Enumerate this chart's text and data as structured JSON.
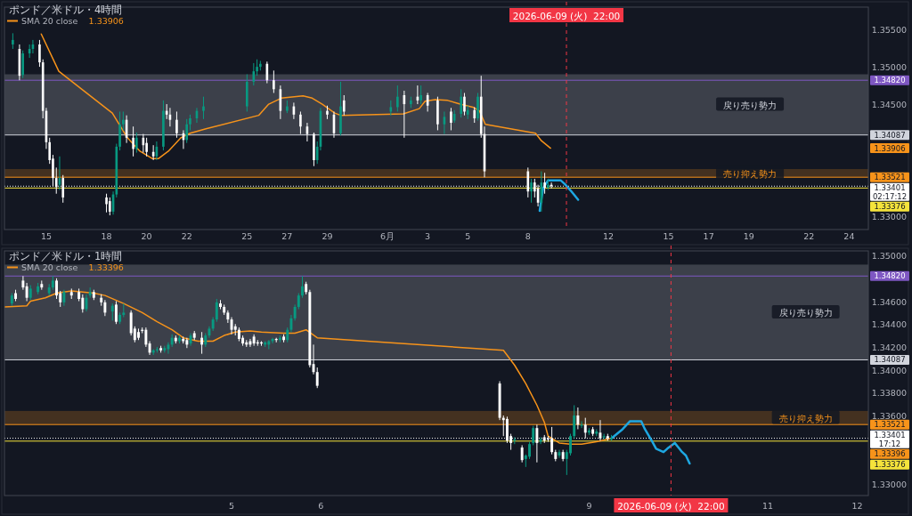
{
  "chart_data": [
    {
      "type": "candlestick",
      "title": "ポンド／米ドル・4時間",
      "legend": "top left",
      "grid": false,
      "x": [
        "2026-05-13T08:00",
        "2026-05-13T16:00",
        "2026-05-13T20:00",
        "2026-05-14T04:00",
        "2026-05-14T08:00",
        "2026-05-14T16:00",
        "2026-05-14T20:00",
        "2026-05-15T00:00",
        "2026-05-15T04:00",
        "2026-05-15T08:00",
        "2026-05-15T12:00",
        "2026-05-15T16:00",
        "2026-05-15T20:00",
        "2026-05-18T00:00",
        "2026-05-18T04:00",
        "2026-05-18T08:00",
        "2026-05-18T12:00",
        "2026-05-18T16:00",
        "2026-05-18T20:00",
        "2026-05-19T00:00",
        "2026-05-19T08:00",
        "2026-05-19T12:00",
        "2026-05-19T20:00",
        "2026-05-20T00:00",
        "2026-05-20T08:00",
        "2026-05-20T12:00",
        "2026-05-20T20:00",
        "2026-05-21T00:00",
        "2026-05-21T04:00",
        "2026-05-21T12:00",
        "2026-05-21T20:00",
        "2026-05-22T00:00",
        "2026-05-22T04:00",
        "2026-05-22T12:00",
        "2026-05-22T20:00",
        "2026-05-25T00:00",
        "2026-05-25T08:00",
        "2026-05-25T12:00",
        "2026-05-25T16:00",
        "2026-05-26T00:00",
        "2026-05-26T08:00",
        "2026-05-26T16:00",
        "2026-05-27T00:00",
        "2026-05-27T08:00",
        "2026-05-27T16:00",
        "2026-05-28T00:00",
        "2026-05-28T08:00",
        "2026-05-28T12:00",
        "2026-05-28T16:00",
        "2026-05-29T00:00",
        "2026-05-29T08:00",
        "2026-05-29T16:00",
        "2026-05-29T20:00",
        "2026-06-01T04:00",
        "2026-06-01T12:00",
        "2026-06-01T20:00",
        "2026-06-02T04:00",
        "2026-06-02T12:00",
        "2026-06-02T16:00",
        "2026-06-03T00:00",
        "2026-06-03T12:00",
        "2026-06-03T20:00",
        "2026-06-04T04:00",
        "2026-06-04T08:00",
        "2026-06-04T16:00",
        "2026-06-04T20:00",
        "2026-06-05T00:00",
        "2026-06-05T08:00",
        "2026-06-05T12:00",
        "2026-06-05T16:00",
        "2026-06-05T20:00",
        "2026-06-08T00:00",
        "2026-06-08T04:00",
        "2026-06-08T08:00",
        "2026-06-08T12:00",
        "2026-06-08T16:00",
        "2026-06-08T20:00",
        "2026-06-09T00:00",
        "2026-06-09T04:00"
      ],
      "ohlc": [
        [
          1.353,
          1.3545,
          1.3524,
          1.3536
        ],
        [
          1.3524,
          1.353,
          1.3482,
          1.3488
        ],
        [
          1.3489,
          1.3522,
          1.3485,
          1.3518
        ],
        [
          1.3518,
          1.353,
          1.3512,
          1.3524
        ],
        [
          1.3524,
          1.3536,
          1.3518,
          1.353
        ],
        [
          1.353,
          1.3536,
          1.35,
          1.3506
        ],
        [
          1.3506,
          1.351,
          1.3431,
          1.3441
        ],
        [
          1.3441,
          1.3445,
          1.339,
          1.3399
        ],
        [
          1.3399,
          1.3405,
          1.337,
          1.3375
        ],
        [
          1.3377,
          1.3382,
          1.334,
          1.3351
        ],
        [
          1.3351,
          1.3365,
          1.333,
          1.3339
        ],
        [
          1.3342,
          1.338,
          1.3335,
          1.3351
        ],
        [
          1.3351,
          1.3355,
          1.3318,
          1.3325
        ],
        [
          1.3325,
          1.333,
          1.3305,
          1.3316
        ],
        [
          1.332,
          1.3325,
          1.3301,
          1.3306
        ],
        [
          1.3306,
          1.3333,
          1.3302,
          1.3329
        ],
        [
          1.3329,
          1.3397,
          1.3325,
          1.3393
        ],
        [
          1.3393,
          1.344,
          1.3388,
          1.3423
        ],
        [
          1.3423,
          1.344,
          1.3415,
          1.3429
        ],
        [
          1.3429,
          1.3435,
          1.3398,
          1.3405
        ],
        [
          1.3405,
          1.342,
          1.338,
          1.339
        ],
        [
          1.339,
          1.3412,
          1.3385,
          1.3405
        ],
        [
          1.3405,
          1.341,
          1.3385,
          1.3395
        ],
        [
          1.3398,
          1.3405,
          1.338,
          1.3386
        ],
        [
          1.3386,
          1.3395,
          1.3375,
          1.338
        ],
        [
          1.338,
          1.34,
          1.3375,
          1.3393
        ],
        [
          1.3393,
          1.3455,
          1.3388,
          1.3441
        ],
        [
          1.3441,
          1.345,
          1.343,
          1.3436
        ],
        [
          1.3436,
          1.3445,
          1.342,
          1.3429
        ],
        [
          1.3429,
          1.344,
          1.3405,
          1.3411
        ],
        [
          1.3411,
          1.3415,
          1.339,
          1.3402
        ],
        [
          1.3402,
          1.343,
          1.3398,
          1.3423
        ],
        [
          1.3423,
          1.3436,
          1.3415,
          1.3431
        ],
        [
          1.3431,
          1.3445,
          1.3425,
          1.3441
        ],
        [
          1.3441,
          1.346,
          1.343,
          1.3447
        ],
        [
          1.3447,
          1.349,
          1.344,
          1.348
        ],
        [
          1.348,
          1.3505,
          1.3475,
          1.3494
        ],
        [
          1.3494,
          1.351,
          1.3488,
          1.35
        ],
        [
          1.35,
          1.3508,
          1.3495,
          1.3504
        ],
        [
          1.3504,
          1.3507,
          1.3478,
          1.3482
        ],
        [
          1.3482,
          1.3495,
          1.3465,
          1.347
        ],
        [
          1.347,
          1.3475,
          1.343,
          1.3441
        ],
        [
          1.3441,
          1.3455,
          1.3438,
          1.3447
        ],
        [
          1.3447,
          1.3452,
          1.343,
          1.3436
        ],
        [
          1.3436,
          1.344,
          1.341,
          1.342
        ],
        [
          1.342,
          1.3425,
          1.34,
          1.341
        ],
        [
          1.341,
          1.3412,
          1.3367,
          1.3375
        ],
        [
          1.3375,
          1.34,
          1.337,
          1.3393
        ],
        [
          1.3393,
          1.3445,
          1.3388,
          1.3441
        ],
        [
          1.3441,
          1.3448,
          1.343,
          1.3436
        ],
        [
          1.3436,
          1.344,
          1.3405,
          1.3411
        ],
        [
          1.3411,
          1.348,
          1.3408,
          1.3447
        ],
        [
          1.3455,
          1.3462,
          1.3435,
          1.344
        ],
        [
          1.344,
          1.3455,
          1.3435,
          1.3446
        ],
        [
          1.3446,
          1.3475,
          1.344,
          1.346
        ],
        [
          1.3462,
          1.3468,
          1.3405,
          1.345
        ],
        [
          1.345,
          1.346,
          1.3445,
          1.3455
        ],
        [
          1.346,
          1.3475,
          1.345,
          1.3455
        ],
        [
          1.3455,
          1.3475,
          1.345,
          1.3462
        ],
        [
          1.3462,
          1.3465,
          1.344,
          1.3448
        ],
        [
          1.3455,
          1.346,
          1.3415,
          1.3423
        ],
        [
          1.3423,
          1.344,
          1.341,
          1.3433
        ],
        [
          1.344,
          1.3445,
          1.3415,
          1.3425
        ],
        [
          1.3428,
          1.3442,
          1.3425,
          1.3437
        ],
        [
          1.3437,
          1.347,
          1.3432,
          1.346
        ],
        [
          1.346,
          1.3465,
          1.3435,
          1.344
        ],
        [
          1.3436,
          1.3448,
          1.343,
          1.3442
        ],
        [
          1.3442,
          1.3446,
          1.3425,
          1.3431
        ],
        [
          1.3431,
          1.3465,
          1.3428,
          1.346
        ],
        [
          1.346,
          1.3488,
          1.3405,
          1.341
        ],
        [
          1.341,
          1.342,
          1.3352,
          1.336
        ],
        [
          1.336,
          1.3365,
          1.3325,
          1.3333
        ],
        [
          1.3333,
          1.335,
          1.3318,
          1.3345
        ],
        [
          1.3345,
          1.335,
          1.3325,
          1.3333
        ],
        [
          1.3337,
          1.3342,
          1.3313,
          1.3318
        ],
        [
          1.3318,
          1.336,
          1.3306,
          1.3345
        ],
        [
          1.3345,
          1.3358,
          1.333,
          1.3338
        ],
        [
          1.3338,
          1.335,
          1.3335,
          1.3342
        ],
        [
          1.3342,
          1.3345,
          1.3337,
          1.334
        ]
      ],
      "colors": [
        "#089981",
        "#ffffff",
        "#089981",
        "#089981",
        "#089981",
        "#ffffff",
        "#ffffff",
        "#ffffff",
        "#ffffff",
        "#ffffff",
        "#ffffff",
        "#089981",
        "#ffffff",
        "#ffffff",
        "#ffffff",
        "#089981",
        "#089981",
        "#089981",
        "#089981",
        "#ffffff",
        "#ffffff",
        "#089981",
        "#ffffff",
        "#ffffff",
        "#ffffff",
        "#089981",
        "#089981",
        "#ffffff",
        "#ffffff",
        "#ffffff",
        "#ffffff",
        "#089981",
        "#089981",
        "#089981",
        "#089981",
        "#089981",
        "#089981",
        "#089981",
        "#089981",
        "#ffffff",
        "#ffffff",
        "#ffffff",
        "#089981",
        "#ffffff",
        "#ffffff",
        "#ffffff",
        "#ffffff",
        "#089981",
        "#089981",
        "#ffffff",
        "#ffffff",
        "#089981",
        "#ffffff",
        "#089981",
        "#089981",
        "#ffffff",
        "#089981",
        "#ffffff",
        "#089981",
        "#ffffff",
        "#ffffff",
        "#089981",
        "#ffffff",
        "#089981",
        "#089981",
        "#ffffff",
        "#089981",
        "#ffffff",
        "#089981",
        "#ffffff",
        "#ffffff",
        "#ffffff",
        "#089981",
        "#ffffff",
        "#ffffff",
        "#089981",
        "#ffffff",
        "#089981",
        "#ffffff"
      ],
      "series": [
        {
          "name": "SMA 20 close",
          "type": "line",
          "color": "#f7931a",
          "x": [
            "2026-05-14T18:00",
            "2026-05-15T15:00",
            "2026-05-18T07:00",
            "2026-05-19T01:00",
            "2026-05-19T16:00",
            "2026-05-20T07:00",
            "2026-05-20T14:00",
            "2026-05-21T02:00",
            "2026-05-21T17:00",
            "2026-05-22T04:00",
            "2026-05-22T23:00",
            "2026-05-25T14:00",
            "2026-05-26T02:00",
            "2026-05-26T17:00",
            "2026-05-27T19:00",
            "2026-05-28T06:00",
            "2026-05-28T18:00",
            "2026-05-29T09:00",
            "2026-05-29T16:00",
            "2026-06-01T19:00",
            "2026-06-02T14:00",
            "2026-06-02T21:00",
            "2026-06-03T09:00",
            "2026-06-04T00:00",
            "2026-06-04T15:00",
            "2026-06-05T06:00",
            "2026-06-05T14:00",
            "2026-06-05T21:00",
            "2026-06-08T09:00",
            "2026-06-08T16:00",
            "2026-06-09T03:00"
          ],
          "values": [
            1.3544,
            1.3494,
            1.3438,
            1.3405,
            1.3387,
            1.3377,
            1.3377,
            1.3387,
            1.3405,
            1.3411,
            1.3417,
            1.3435,
            1.345,
            1.3458,
            1.3461,
            1.3458,
            1.345,
            1.3438,
            1.3435,
            1.3437,
            1.3444,
            1.3454,
            1.3456,
            1.3455,
            1.345,
            1.3446,
            1.3441,
            1.3423,
            1.3411,
            1.3401,
            1.3391
          ]
        },
        {
          "type": "line",
          "color": "#1ea7e1",
          "x": [
            "2026-06-08T14:00",
            "2026-06-08T18:00",
            "2026-06-09T00:00",
            "2026-06-09T15:00",
            "2026-06-09T20:00",
            "2026-06-10T04:00",
            "2026-06-10T12:00"
          ],
          "values": [
            1.3307,
            1.3337,
            1.3348,
            1.3348,
            1.3343,
            1.3333,
            1.3322
          ]
        }
      ],
      "xlim": [
        "2026-05-12T22:00",
        "2026-06-24T23:00"
      ],
      "xticks": [
        {
          "value": "2026-05-15",
          "label": "15"
        },
        {
          "value": "2026-05-18",
          "label": "18"
        },
        {
          "value": "2026-05-20",
          "label": "20"
        },
        {
          "value": "2026-05-22",
          "label": "22"
        },
        {
          "value": "2026-05-25",
          "label": "25"
        },
        {
          "value": "2026-05-27",
          "label": "27"
        },
        {
          "value": "2026-05-29",
          "label": "29"
        },
        {
          "value": "2026-06-01",
          "label": "6月"
        },
        {
          "value": "2026-06-03",
          "label": "3"
        },
        {
          "value": "2026-06-05",
          "label": "5"
        },
        {
          "value": "2026-06-08",
          "label": "8"
        },
        {
          "value": "2026-06-12",
          "label": "12"
        },
        {
          "value": "2026-06-15",
          "label": "15"
        },
        {
          "value": "2026-06-17",
          "label": "17"
        },
        {
          "value": "2026-06-19",
          "label": "19"
        },
        {
          "value": "2026-06-22",
          "label": "22"
        },
        {
          "value": "2026-06-24",
          "label": "24"
        }
      ],
      "ylim": [
        1.3282,
        1.358
      ],
      "yticks": [
        {
          "value": 1.33,
          "label": "1.33000"
        },
        {
          "value": 1.345,
          "label": "1.34500"
        },
        {
          "value": 1.35,
          "label": "1.35000"
        },
        {
          "value": 1.355,
          "label": "1.35500"
        }
      ],
      "bands": [
        {
          "axis": "y",
          "from": 1.34087,
          "to": 1.349,
          "label": "戻り売り勢力",
          "color": "#d1d4dc"
        },
        {
          "axis": "y",
          "from": 1.33521,
          "to": 1.3363,
          "label": "売り抑え勢力",
          "color": "#f7931a"
        }
      ],
      "ref_lines": [
        {
          "axis": "y",
          "value": 1.3482,
          "label": "1.34820",
          "color": "#7e57c2"
        },
        {
          "axis": "y",
          "value": 1.34087,
          "label": "1.34087",
          "color": "#d1d4dc"
        },
        {
          "axis": "y",
          "value": 1.33521,
          "label": "1.33521",
          "color": "#f7931a"
        },
        {
          "axis": "y",
          "value": 1.33401,
          "label": "1.33401\n02:17:12",
          "color": "#ffffff",
          "line_style": "dotted"
        },
        {
          "axis": "y",
          "value": 1.33376,
          "label": "1.33376",
          "color": "#f5e33b"
        },
        {
          "axis": "x",
          "value": "2026-06-09T22:00",
          "label": "2026-06-09 (火)  22:00",
          "color": "#f23645",
          "line_style": "dashed"
        }
      ],
      "annotations": [
        "1.33906"
      ]
    },
    {
      "type": "candlestick",
      "title": "ポンド／米ドル・1時間",
      "legend": "top left",
      "grid": false,
      "x": [
        "2026-06-02T13:00",
        "2026-06-02T14:00",
        "2026-06-02T16:00",
        "2026-06-02T17:00",
        "2026-06-02T18:00",
        "2026-06-02T20:00",
        "2026-06-02T21:00",
        "2026-06-02T23:00",
        "2026-06-03T00:00",
        "2026-06-03T01:00",
        "2026-06-03T02:00",
        "2026-06-03T03:00",
        "2026-06-03T05:00",
        "2026-06-03T07:00",
        "2026-06-03T08:00",
        "2026-06-03T09:00",
        "2026-06-03T10:00",
        "2026-06-03T11:00",
        "2026-06-03T13:00",
        "2026-06-03T14:00",
        "2026-06-03T16:00",
        "2026-06-03T17:00",
        "2026-06-03T18:00",
        "2026-06-03T19:00",
        "2026-06-03T21:00",
        "2026-06-03T22:00",
        "2026-06-03T23:00",
        "2026-06-04T00:00",
        "2026-06-04T01:00",
        "2026-06-04T02:00",
        "2026-06-04T03:00",
        "2026-06-04T04:00",
        "2026-06-04T05:00",
        "2026-06-04T06:00",
        "2026-06-04T07:00",
        "2026-06-04T08:00",
        "2026-06-04T09:00",
        "2026-06-04T10:00",
        "2026-06-04T11:00",
        "2026-06-04T12:00",
        "2026-06-04T13:00",
        "2026-06-04T14:00",
        "2026-06-04T16:00",
        "2026-06-04T17:00",
        "2026-06-04T18:00",
        "2026-06-04T19:00",
        "2026-06-04T20:00",
        "2026-06-04T21:00",
        "2026-06-04T22:00",
        "2026-06-04T23:00",
        "2026-06-05T00:00",
        "2026-06-05T01:00",
        "2026-06-05T02:00",
        "2026-06-05T03:00",
        "2026-06-05T04:00",
        "2026-06-05T05:00",
        "2026-06-05T06:00",
        "2026-06-05T07:00",
        "2026-06-05T08:00",
        "2026-06-05T09:00",
        "2026-06-05T10:00",
        "2026-06-05T11:00",
        "2026-06-05T12:00",
        "2026-06-05T13:00",
        "2026-06-05T14:00",
        "2026-06-05T15:00",
        "2026-06-05T16:00",
        "2026-06-05T17:00",
        "2026-06-05T18:00",
        "2026-06-05T19:00",
        "2026-06-05T20:00",
        "2026-06-05T21:00",
        "2026-06-05T22:00",
        "2026-06-05T23:00",
        "2026-06-08T00:00",
        "2026-06-08T01:00",
        "2026-06-08T02:00",
        "2026-06-08T03:00",
        "2026-06-08T04:00",
        "2026-06-08T06:00",
        "2026-06-08T07:00",
        "2026-06-08T08:00",
        "2026-06-08T09:00",
        "2026-06-08T10:00",
        "2026-06-08T11:00",
        "2026-06-08T12:00",
        "2026-06-08T13:00",
        "2026-06-08T14:00",
        "2026-06-08T15:00",
        "2026-06-08T16:00",
        "2026-06-08T17:00",
        "2026-06-08T18:00",
        "2026-06-08T19:00",
        "2026-06-08T20:00",
        "2026-06-08T21:00",
        "2026-06-08T22:00",
        "2026-06-08T23:00",
        "2026-06-09T00:00",
        "2026-06-09T01:00",
        "2026-06-09T02:00",
        "2026-06-09T03:00",
        "2026-06-09T04:00",
        "2026-06-09T05:00",
        "2026-06-09T06:00"
      ],
      "ohlc": [
        [
          1.3458,
          1.3467,
          1.3456,
          1.3465
        ],
        [
          1.3467,
          1.347,
          1.346,
          1.3462
        ],
        [
          1.3478,
          1.3482,
          1.347,
          1.3472
        ],
        [
          1.3473,
          1.3476,
          1.346,
          1.3463
        ],
        [
          1.3463,
          1.3474,
          1.3461,
          1.3471
        ],
        [
          1.3468,
          1.3476,
          1.3466,
          1.3473
        ],
        [
          1.3475,
          1.3478,
          1.347,
          1.3472
        ],
        [
          1.3467,
          1.3475,
          1.3465,
          1.3472
        ],
        [
          1.3472,
          1.3482,
          1.347,
          1.3478
        ],
        [
          1.3478,
          1.348,
          1.3462,
          1.3465
        ],
        [
          1.3467,
          1.3469,
          1.3455,
          1.3459
        ],
        [
          1.3459,
          1.347,
          1.3456,
          1.3468
        ],
        [
          1.3468,
          1.3471,
          1.3462,
          1.3465
        ],
        [
          1.3468,
          1.3471,
          1.346,
          1.3462
        ],
        [
          1.3463,
          1.3466,
          1.345,
          1.3453
        ],
        [
          1.3453,
          1.3466,
          1.3451,
          1.3463
        ],
        [
          1.3465,
          1.3472,
          1.3463,
          1.3468
        ],
        [
          1.3468,
          1.347,
          1.3461,
          1.3463
        ],
        [
          1.3463,
          1.3466,
          1.3456,
          1.3459
        ],
        [
          1.3459,
          1.3461,
          1.3447,
          1.345
        ],
        [
          1.3451,
          1.3458,
          1.3443,
          1.3456
        ],
        [
          1.3457,
          1.346,
          1.344,
          1.3442
        ],
        [
          1.3442,
          1.345,
          1.344,
          1.3448
        ],
        [
          1.3448,
          1.3458,
          1.3446,
          1.345
        ],
        [
          1.345,
          1.3452,
          1.343,
          1.3432
        ],
        [
          1.3436,
          1.3438,
          1.3424,
          1.3426
        ],
        [
          1.3433,
          1.3436,
          1.3426,
          1.3428
        ],
        [
          1.3435,
          1.3437,
          1.3432,
          1.3434
        ],
        [
          1.3435,
          1.3437,
          1.342,
          1.3422
        ],
        [
          1.3423,
          1.3425,
          1.3413,
          1.3415
        ],
        [
          1.3415,
          1.3418,
          1.3413,
          1.3417
        ],
        [
          1.3417,
          1.342,
          1.3415,
          1.3418
        ],
        [
          1.3419,
          1.3421,
          1.3415,
          1.3417
        ],
        [
          1.3417,
          1.3421,
          1.3415,
          1.3419
        ],
        [
          1.3418,
          1.3424,
          1.3414,
          1.3422
        ],
        [
          1.3422,
          1.3431,
          1.342,
          1.3428
        ],
        [
          1.3428,
          1.343,
          1.3423,
          1.3425
        ],
        [
          1.3425,
          1.343,
          1.3423,
          1.3428
        ],
        [
          1.3427,
          1.3429,
          1.3423,
          1.3425
        ],
        [
          1.3426,
          1.3428,
          1.3419,
          1.3422
        ],
        [
          1.3423,
          1.3432,
          1.3421,
          1.343
        ],
        [
          1.3432,
          1.3434,
          1.3426,
          1.3428
        ],
        [
          1.3428,
          1.3433,
          1.3414,
          1.3422
        ],
        [
          1.3422,
          1.3432,
          1.342,
          1.343
        ],
        [
          1.343,
          1.3438,
          1.3428,
          1.3436
        ],
        [
          1.3436,
          1.3446,
          1.3434,
          1.3444
        ],
        [
          1.3444,
          1.3462,
          1.3442,
          1.3459
        ],
        [
          1.3458,
          1.3461,
          1.3453,
          1.3455
        ],
        [
          1.3455,
          1.3457,
          1.3448,
          1.345
        ],
        [
          1.345,
          1.3452,
          1.3441,
          1.3444
        ],
        [
          1.3444,
          1.3446,
          1.3431,
          1.3435
        ],
        [
          1.3438,
          1.344,
          1.343,
          1.3435
        ],
        [
          1.3435,
          1.3437,
          1.3425,
          1.3427
        ],
        [
          1.3428,
          1.343,
          1.3421,
          1.3423
        ],
        [
          1.3424,
          1.3426,
          1.342,
          1.3422
        ],
        [
          1.3425,
          1.3427,
          1.342,
          1.3422
        ],
        [
          1.3429,
          1.3431,
          1.3421,
          1.3423
        ],
        [
          1.3424,
          1.3426,
          1.3421,
          1.3423
        ],
        [
          1.3424,
          1.3425,
          1.3421,
          1.3423
        ],
        [
          1.3422,
          1.3425,
          1.342,
          1.3424
        ],
        [
          1.3422,
          1.3426,
          1.3418,
          1.3425
        ],
        [
          1.3425,
          1.3428,
          1.3423,
          1.3427
        ],
        [
          1.3427,
          1.3428,
          1.3424,
          1.3426
        ],
        [
          1.3426,
          1.343,
          1.3424,
          1.3428
        ],
        [
          1.3429,
          1.3431,
          1.3424,
          1.3426
        ],
        [
          1.3426,
          1.3437,
          1.3424,
          1.3435
        ],
        [
          1.3435,
          1.3448,
          1.3433,
          1.3445
        ],
        [
          1.3445,
          1.3457,
          1.3443,
          1.3455
        ],
        [
          1.3455,
          1.3467,
          1.3453,
          1.3465
        ],
        [
          1.3465,
          1.3482,
          1.3463,
          1.3473
        ],
        [
          1.3475,
          1.3477,
          1.3466,
          1.3468
        ],
        [
          1.3468,
          1.347,
          1.3402,
          1.3404
        ],
        [
          1.3405,
          1.3422,
          1.3396,
          1.3398
        ],
        [
          1.3398,
          1.3402,
          1.3384,
          1.3386
        ],
        [
          1.3388,
          1.339,
          1.3356,
          1.3358
        ],
        [
          1.3358,
          1.336,
          1.3342,
          1.3356
        ],
        [
          1.3357,
          1.3359,
          1.3336,
          1.3338
        ],
        [
          1.3342,
          1.3344,
          1.333,
          1.3336
        ],
        [
          1.3338,
          1.3341,
          1.3335,
          1.3339
        ],
        [
          1.3332,
          1.3334,
          1.3319,
          1.3321
        ],
        [
          1.3322,
          1.3326,
          1.3315,
          1.3325
        ],
        [
          1.3324,
          1.3337,
          1.3322,
          1.3335
        ],
        [
          1.3336,
          1.3351,
          1.3334,
          1.3349
        ],
        [
          1.3349,
          1.3352,
          1.3319,
          1.3336
        ],
        [
          1.3337,
          1.3341,
          1.3335,
          1.3339
        ],
        [
          1.3341,
          1.3343,
          1.3336,
          1.3338
        ],
        [
          1.334,
          1.3342,
          1.3337,
          1.3339
        ],
        [
          1.334,
          1.335,
          1.3326,
          1.3328
        ],
        [
          1.3328,
          1.333,
          1.332,
          1.3322
        ],
        [
          1.3325,
          1.333,
          1.3323,
          1.3328
        ],
        [
          1.3328,
          1.333,
          1.332,
          1.3322
        ],
        [
          1.3322,
          1.333,
          1.3308,
          1.3328
        ],
        [
          1.3327,
          1.3344,
          1.3325,
          1.3342
        ],
        [
          1.3342,
          1.3369,
          1.334,
          1.336
        ],
        [
          1.336,
          1.3367,
          1.3348,
          1.3352
        ],
        [
          1.3351,
          1.3355,
          1.3349,
          1.3352
        ],
        [
          1.3352,
          1.3358,
          1.334,
          1.3345
        ],
        [
          1.3345,
          1.3349,
          1.3343,
          1.3347
        ],
        [
          1.3348,
          1.335,
          1.3342,
          1.3344
        ],
        [
          1.3344,
          1.3348,
          1.3342,
          1.3346
        ],
        [
          1.3345,
          1.3356,
          1.3338,
          1.334
        ],
        [
          1.3341,
          1.3344,
          1.3339,
          1.3342
        ],
        [
          1.3342,
          1.3344,
          1.3338,
          1.334
        ],
        [
          1.3339,
          1.3343,
          1.3338,
          1.334
        ]
      ],
      "colors": [
        "#089981",
        "#ffffff",
        "#ffffff",
        "#ffffff",
        "#089981",
        "#089981",
        "#ffffff",
        "#089981",
        "#089981",
        "#ffffff",
        "#ffffff",
        "#089981",
        "#ffffff",
        "#ffffff",
        "#ffffff",
        "#089981",
        "#089981",
        "#ffffff",
        "#ffffff",
        "#ffffff",
        "#089981",
        "#ffffff",
        "#089981",
        "#089981",
        "#ffffff",
        "#ffffff",
        "#ffffff",
        "#ffffff",
        "#ffffff",
        "#ffffff",
        "#089981",
        "#089981",
        "#ffffff",
        "#089981",
        "#089981",
        "#089981",
        "#ffffff",
        "#089981",
        "#ffffff",
        "#ffffff",
        "#089981",
        "#ffffff",
        "#ffffff",
        "#089981",
        "#089981",
        "#089981",
        "#089981",
        "#ffffff",
        "#ffffff",
        "#ffffff",
        "#ffffff",
        "#ffffff",
        "#ffffff",
        "#ffffff",
        "#ffffff",
        "#ffffff",
        "#ffffff",
        "#ffffff",
        "#ffffff",
        "#089981",
        "#089981",
        "#089981",
        "#ffffff",
        "#089981",
        "#ffffff",
        "#089981",
        "#089981",
        "#089981",
        "#089981",
        "#089981",
        "#ffffff",
        "#ffffff",
        "#ffffff",
        "#ffffff",
        "#ffffff",
        "#ffffff",
        "#ffffff",
        "#ffffff",
        "#089981",
        "#ffffff",
        "#089981",
        "#089981",
        "#089981",
        "#ffffff",
        "#089981",
        "#ffffff",
        "#ffffff",
        "#ffffff",
        "#ffffff",
        "#089981",
        "#ffffff",
        "#089981",
        "#089981",
        "#089981",
        "#ffffff",
        "#089981",
        "#ffffff",
        "#089981",
        "#ffffff",
        "#089981",
        "#ffffff",
        "#089981",
        "#ffffff",
        "#089981"
      ],
      "series": [
        {
          "name": "SMA 20 close",
          "type": "line",
          "color": "#f7931a",
          "x": [
            "2026-06-02T11:00",
            "2026-06-02T17:00",
            "2026-06-02T18:00",
            "2026-06-02T22:00",
            "2026-06-03T01:00",
            "2026-06-03T05:00",
            "2026-06-03T11:00",
            "2026-06-03T14:00",
            "2026-06-03T19:00",
            "2026-06-04T00:00",
            "2026-06-04T04:00",
            "2026-06-04T08:00",
            "2026-06-04T11:00",
            "2026-06-04T15:00",
            "2026-06-04T19:00",
            "2026-06-04T22:00",
            "2026-06-05T01:00",
            "2026-06-05T05:00",
            "2026-06-05T08:00",
            "2026-06-05T14:00",
            "2026-06-05T17:00",
            "2026-06-05T19:00",
            "2026-06-05T20:00",
            "2026-06-05T23:00",
            "2026-06-08T01:00",
            "2026-06-08T04:00",
            "2026-06-08T07:00",
            "2026-06-08T10:00",
            "2026-06-08T12:00",
            "2026-06-08T13:00",
            "2026-06-08T16:00",
            "2026-06-08T19:00",
            "2026-06-08T22:00",
            "2026-06-09T02:00",
            "2026-06-09T06:00"
          ],
          "values": [
            1.3455,
            1.3456,
            1.346,
            1.3463,
            1.3467,
            1.3469,
            1.3467,
            1.3465,
            1.3458,
            1.345,
            1.3442,
            1.3435,
            1.3428,
            1.3425,
            1.3425,
            1.343,
            1.3433,
            1.3434,
            1.3433,
            1.3432,
            1.3432,
            1.3434,
            1.3435,
            1.3428,
            1.3417,
            1.3404,
            1.3388,
            1.3369,
            1.3354,
            1.3342,
            1.3336,
            1.3335,
            1.3335,
            1.3337,
            1.334
          ]
        },
        {
          "type": "line",
          "color": "#1ea7e1",
          "x": [
            "2026-06-09T06:00",
            "2026-06-09T09:00",
            "2026-06-09T11:00",
            "2026-06-09T13:00",
            "2026-06-09T14:00",
            "2026-06-09T15:00",
            "2026-06-09T17:00",
            "2026-06-09T18:00",
            "2026-06-09T20:00",
            "2026-06-09T21:00",
            "2026-06-09T23:00",
            "2026-06-10T00:00",
            "2026-06-10T01:00",
            "2026-06-10T02:00",
            "2026-06-10T03:00"
          ],
          "values": [
            1.334,
            1.3348,
            1.3355,
            1.3355,
            1.3355,
            1.3348,
            1.3337,
            1.3331,
            1.3328,
            1.3331,
            1.3336,
            1.3332,
            1.3328,
            1.3325,
            1.3318
          ]
        }
      ],
      "xlim": [
        "2026-06-02T11:00",
        "2026-06-12T03:00"
      ],
      "xticks": [
        {
          "value": "2026-06-05",
          "label": "5"
        },
        {
          "value": "2026-06-06",
          "label": "6"
        },
        {
          "value": "2026-06-09",
          "label": "9"
        },
        {
          "value": "2026-06-11",
          "label": "11"
        },
        {
          "value": "2026-06-12",
          "label": "12"
        }
      ],
      "ylim": [
        1.329,
        1.3504
      ],
      "yticks": [
        {
          "value": 1.33,
          "label": "1.33000"
        },
        {
          "value": 1.336,
          "label": "1.33600"
        },
        {
          "value": 1.338,
          "label": "1.33800"
        },
        {
          "value": 1.34,
          "label": "1.34000"
        },
        {
          "value": 1.342,
          "label": "1.34200"
        },
        {
          "value": 1.344,
          "label": "1.34400"
        },
        {
          "value": 1.346,
          "label": "1.34600"
        },
        {
          "value": 1.35,
          "label": "1.35000"
        }
      ],
      "bands": [
        {
          "axis": "y",
          "from": 1.34087,
          "to": 1.3492,
          "label": "戻り売り勢力",
          "color": "#d1d4dc"
        },
        {
          "axis": "y",
          "from": 1.33521,
          "to": 1.3364,
          "label": "売り抑え勢力",
          "color": "#f7931a"
        }
      ],
      "ref_lines": [
        {
          "axis": "y",
          "value": 1.3482,
          "label": "1.34820",
          "color": "#7e57c2"
        },
        {
          "axis": "y",
          "value": 1.34087,
          "label": "1.34087",
          "color": "#d1d4dc"
        },
        {
          "axis": "y",
          "value": 1.33521,
          "label": "1.33521",
          "color": "#f7931a"
        },
        {
          "axis": "y",
          "value": 1.33401,
          "label": "1.33401\n17:12",
          "color": "#ffffff",
          "line_style": "dotted"
        },
        {
          "axis": "y",
          "value": 1.33376,
          "label": "1.33376",
          "color": "#f5e33b"
        },
        {
          "axis": "x",
          "value": "2026-06-09T22:00",
          "label": "2026-06-09 (火)  22:00",
          "color": "#f23645",
          "line_style": "dashed"
        }
      ],
      "annotations": [
        "1.33396"
      ]
    }
  ]
}
